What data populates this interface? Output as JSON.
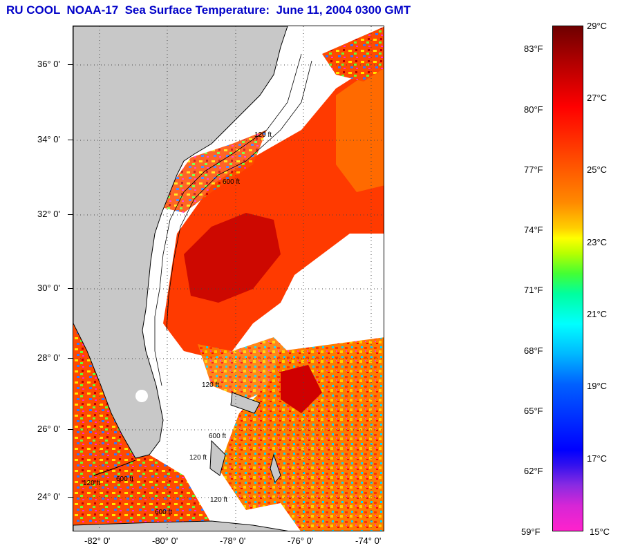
{
  "title": "RU COOL  NOAA-17  Sea Surface Temperature:  June 11, 2004 0300 GMT",
  "map": {
    "lat_labels": [
      "36° 0'",
      "34° 0'",
      "32° 0'",
      "30° 0'",
      "28° 0'",
      "26° 0'",
      "24° 0'"
    ],
    "lon_labels": [
      "-82° 0'",
      "-80° 0'",
      "-78° 0'",
      "-76° 0'",
      "-74° 0'"
    ],
    "contour_labels": [
      "120 ft",
      "600 ft",
      "120 ft",
      "600 ft",
      "120 ft",
      "600 ft",
      "120 ft",
      "600 ft",
      "120 ft"
    ],
    "colors": {
      "land": "#c8c8c8",
      "cloud": "#ffffff",
      "warm": "#ff2a00",
      "hot": "#b40000",
      "orange": "#ff7800",
      "coast": "#000000"
    }
  },
  "colorbar": {
    "fahrenheit": [
      "83°F",
      "80°F",
      "77°F",
      "74°F",
      "71°F",
      "68°F",
      "65°F",
      "62°F",
      "59°F"
    ],
    "celsius": [
      "29°C",
      "27°C",
      "25°C",
      "23°C",
      "21°C",
      "19°C",
      "17°C",
      "15°C"
    ]
  }
}
